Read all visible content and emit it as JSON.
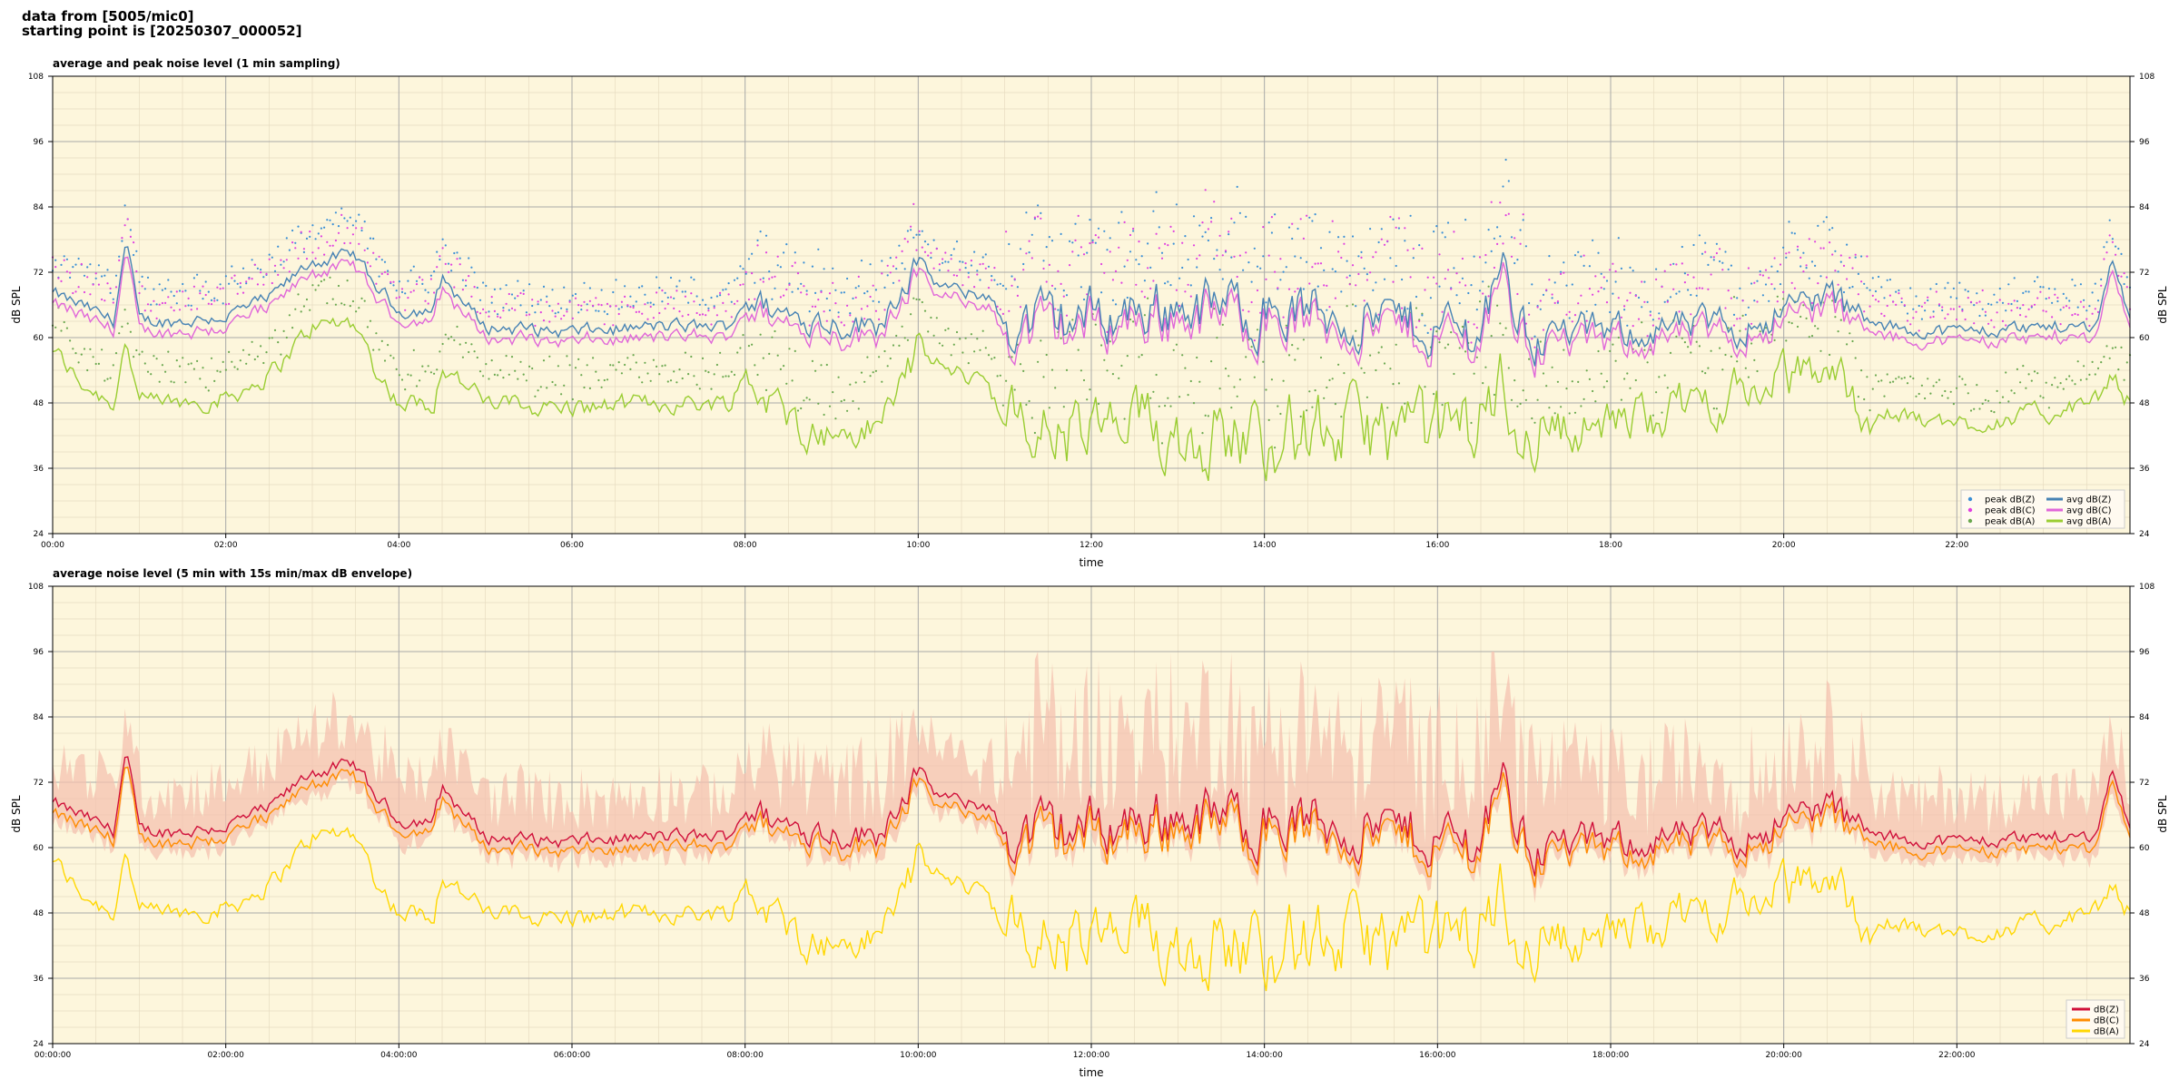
{
  "header": {
    "line1": "data from [5005/mic0]",
    "line2": "starting point is [20250307_000052]"
  },
  "chart_data": [
    {
      "type": "line",
      "title": "average and peak noise level (1 min sampling)",
      "xlabel": "time",
      "ylabel": "dB SPL",
      "xlim_hours": [
        0,
        24
      ],
      "ylim": [
        24,
        108
      ],
      "yticks": [
        24,
        36,
        48,
        60,
        72,
        84,
        96,
        108
      ],
      "xtick_hours": [
        0,
        2,
        4,
        6,
        8,
        10,
        12,
        14,
        16,
        18,
        20,
        22
      ],
      "xtick_labels": [
        "00:00",
        "02:00",
        "04:00",
        "06:00",
        "08:00",
        "10:00",
        "12:00",
        "14:00",
        "16:00",
        "18:00",
        "20:00",
        "22:00"
      ],
      "background": "#fdf6dc",
      "grid": true,
      "legend_position": "bottom-right",
      "series": [
        {
          "name": "peak dB(Z)",
          "kind": "points",
          "color": "#3a8fd6",
          "base": "Z",
          "offset": 3.0
        },
        {
          "name": "peak dB(C)",
          "kind": "points",
          "color": "#e040e0",
          "base": "C",
          "offset": 3.0
        },
        {
          "name": "peak dB(A)",
          "kind": "points",
          "color": "#6aa84f",
          "base": "A",
          "offset": 3.0
        },
        {
          "name": "avg dB(Z)",
          "kind": "line",
          "color": "#4682b4",
          "base": "Z",
          "offset": 0
        },
        {
          "name": "avg dB(C)",
          "kind": "line",
          "color": "#e066d9",
          "base": "C",
          "offset": 0
        },
        {
          "name": "avg dB(A)",
          "kind": "line",
          "color": "#9acd32",
          "base": "A",
          "offset": 0
        }
      ]
    },
    {
      "type": "line",
      "title": "average noise level (5 min with 15s min/max dB envelope)",
      "xlabel": "time",
      "ylabel": "dB SPL",
      "xlim_hours": [
        0,
        24
      ],
      "ylim": [
        24,
        108
      ],
      "yticks": [
        24,
        36,
        48,
        60,
        72,
        84,
        96,
        108
      ],
      "xtick_hours": [
        0,
        2,
        4,
        6,
        8,
        10,
        12,
        14,
        16,
        18,
        20,
        22
      ],
      "xtick_labels": [
        "00:00:00",
        "02:00:00",
        "04:00:00",
        "06:00:00",
        "08:00:00",
        "10:00:00",
        "12:00:00",
        "14:00:00",
        "16:00:00",
        "18:00:00",
        "20:00:00",
        "22:00:00"
      ],
      "background": "#fdf6dc",
      "grid": true,
      "legend_position": "bottom-right",
      "envelope_color": "#f4c2b0",
      "series": [
        {
          "name": "dB(Z)",
          "kind": "line",
          "color": "#d0103a",
          "base": "Z",
          "offset": 0
        },
        {
          "name": "dB(C)",
          "kind": "line",
          "color": "#ff8c00",
          "base": "C",
          "offset": 0
        },
        {
          "name": "dB(A)",
          "kind": "line",
          "color": "#ffd700",
          "base": "A",
          "offset": 0
        }
      ],
      "profile_hours": [
        0,
        0.3,
        0.7,
        0.85,
        1.0,
        1.5,
        2.0,
        2.5,
        3.0,
        3.5,
        3.7,
        4.0,
        4.4,
        4.5,
        5.0,
        6.0,
        7.0,
        7.8,
        8.0,
        8.5,
        9.0,
        9.5,
        10.0,
        10.2,
        10.5,
        10.8,
        11.0,
        12.0,
        13.0,
        14.0,
        15.0,
        16.0,
        16.5,
        16.7,
        17.0,
        18.0,
        19.0,
        19.5,
        20.0,
        20.5,
        21.0,
        22.0,
        23.0,
        23.6,
        23.8,
        24.0
      ],
      "profile_z": [
        68,
        66,
        63,
        78,
        63,
        63,
        64,
        67,
        74,
        75,
        70,
        65,
        65,
        71,
        62,
        61,
        62,
        62,
        67,
        64,
        63,
        62,
        74,
        70,
        68,
        68,
        62,
        64,
        66,
        65,
        64,
        62,
        61,
        75,
        61,
        61,
        62,
        62,
        65,
        68,
        62,
        61,
        62,
        62,
        75,
        63
      ],
      "profile_a": [
        58,
        52,
        48,
        60,
        48,
        48,
        49,
        53,
        62,
        63,
        55,
        48,
        48,
        55,
        48,
        47,
        48,
        48,
        53,
        45,
        42,
        43,
        58,
        55,
        53,
        53,
        43,
        42,
        43,
        42,
        43,
        42,
        45,
        52,
        43,
        44,
        48,
        50,
        52,
        55,
        46,
        44,
        46,
        48,
        53,
        48
      ]
    }
  ],
  "legend": {
    "top": [
      "peak dB(Z)",
      "peak dB(C)",
      "peak dB(A)",
      "avg dB(Z)",
      "avg dB(C)",
      "avg dB(A)"
    ],
    "bottom": [
      "dB(Z)",
      "dB(C)",
      "dB(A)"
    ]
  }
}
